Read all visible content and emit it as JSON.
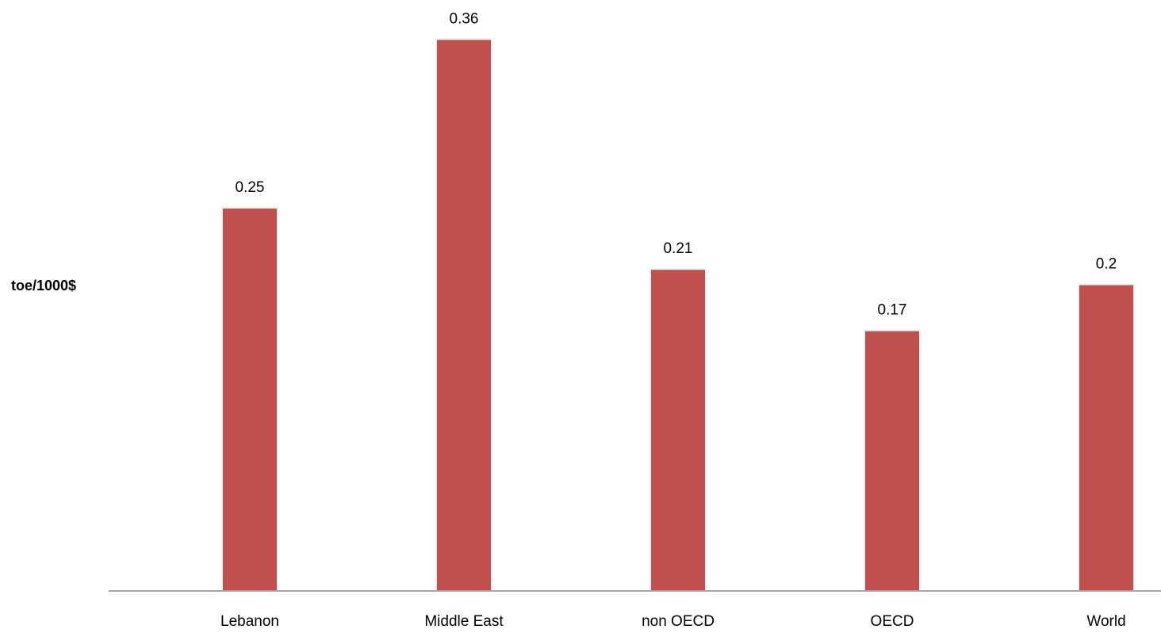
{
  "chart_data": {
    "type": "bar",
    "title": "",
    "xlabel": "",
    "ylabel": "toe/1000$",
    "categories": [
      "Lebanon",
      "Middle East",
      "non OECD",
      "OECD",
      "World"
    ],
    "values": [
      0.25,
      0.36,
      0.21,
      0.17,
      0.2
    ],
    "value_labels": [
      "0.25",
      "0.36",
      "0.21",
      "0.17",
      "0.2"
    ],
    "ylim": [
      0,
      0.37
    ],
    "grid": false,
    "legend": "none",
    "colors": {
      "bar": "#c0504d",
      "bar_edge": "#f0f0f0",
      "axis": "#a6a6a6",
      "text": "#000000"
    }
  }
}
